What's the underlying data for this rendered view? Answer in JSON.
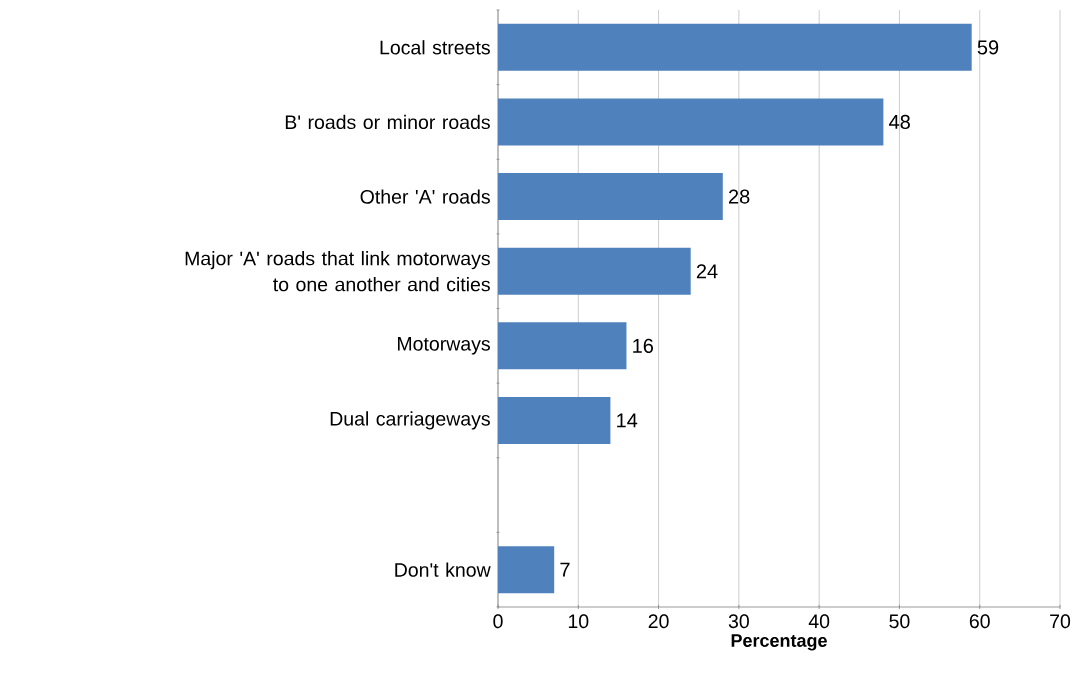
{
  "chart_data": {
    "type": "bar",
    "orientation": "horizontal",
    "xlabel": "Percentage",
    "categories": [
      "Local streets",
      "B' roads or minor roads",
      "Other 'A' roads",
      "Major 'A' roads that link motorways to one another and cities",
      "Motorways",
      "Dual carriageways",
      null,
      "Don't know"
    ],
    "values": [
      59,
      48,
      28,
      24,
      16,
      14,
      null,
      7
    ],
    "color": "#4f81bd",
    "xlim": [
      0,
      70
    ],
    "xticks": [
      0,
      10,
      20,
      30,
      40,
      50,
      60,
      70
    ],
    "grid": "x",
    "data_labels": true
  }
}
